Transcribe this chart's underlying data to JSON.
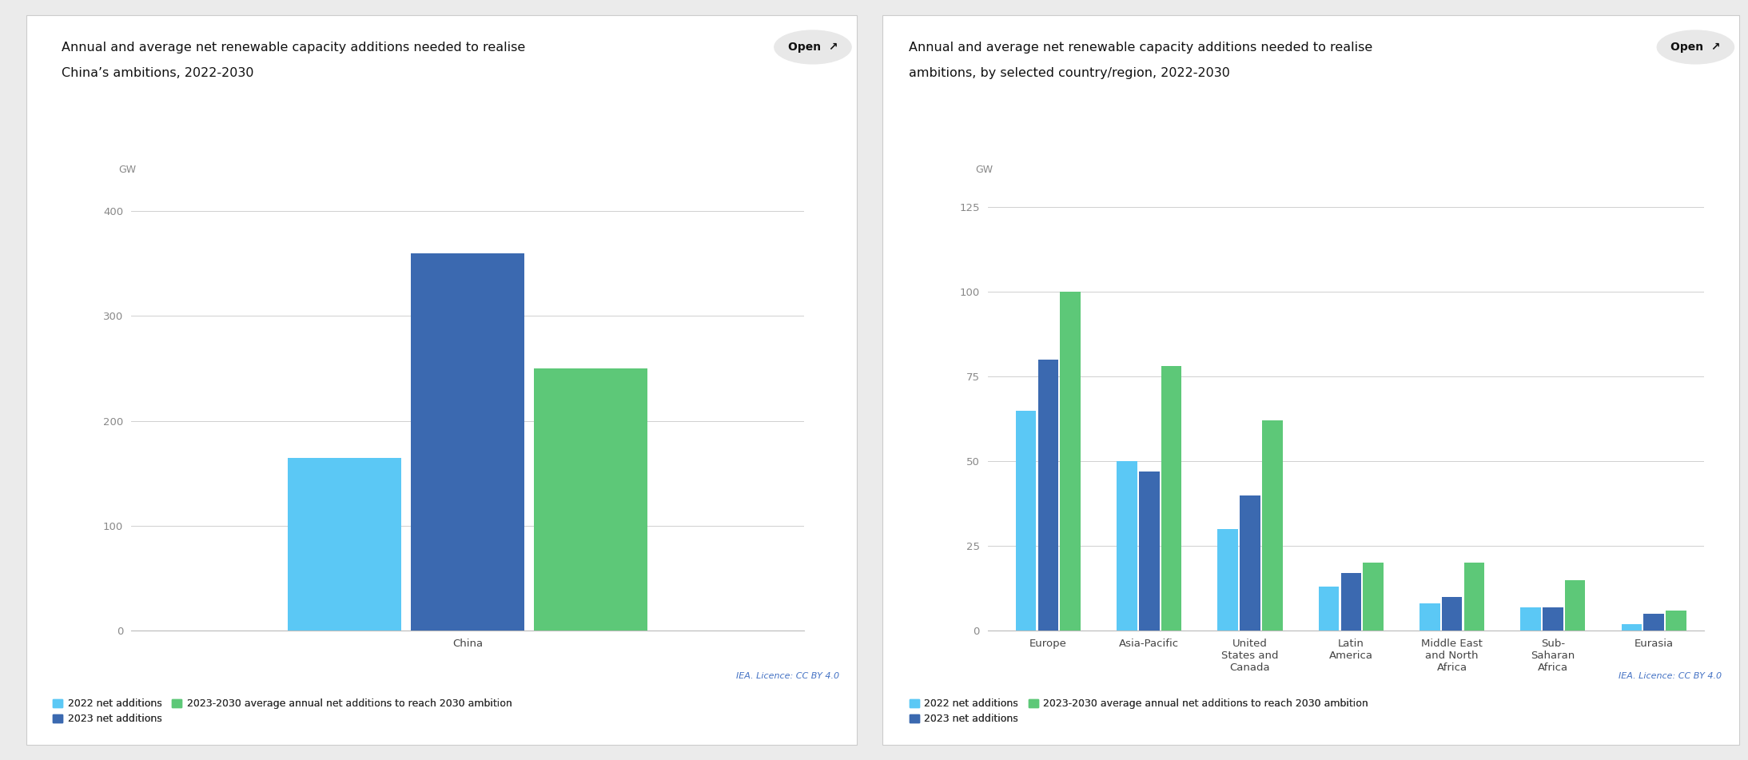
{
  "chart1": {
    "title_line1": "Annual and average net renewable capacity additions needed to realise",
    "title_line2": "China’s ambitions, 2022-2030",
    "ylabel": "GW",
    "ylim": [
      0,
      420
    ],
    "yticks": [
      0,
      100,
      200,
      300,
      400
    ],
    "categories": [
      "China"
    ],
    "bar_groups": {
      "2022 net additions": [
        165
      ],
      "2023 net additions": [
        360
      ],
      "2023-2030 average annual net additions to reach 2030 ambition": [
        250
      ]
    },
    "colors": {
      "2022 net additions": "#5BC8F5",
      "2023 net additions": "#3B69B0",
      "2023-2030 average annual net additions to reach 2030 ambition": "#5DC878"
    }
  },
  "chart2": {
    "title_line1": "Annual and average net renewable capacity additions needed to realise",
    "title_line2": "ambitions, by selected country/region, 2022-2030",
    "ylabel": "GW",
    "ylim": [
      0,
      130
    ],
    "yticks": [
      0,
      25,
      50,
      75,
      100,
      125
    ],
    "categories": [
      "Europe",
      "Asia-Pacific",
      "United\nStates and\nCanada",
      "Latin\nAmerica",
      "Middle East\nand North\nAfrica",
      "Sub-\nSaharan\nAfrica",
      "Eurasia"
    ],
    "bar_groups": {
      "2022 net additions": [
        65,
        50,
        30,
        13,
        8,
        7,
        2
      ],
      "2023 net additions": [
        80,
        47,
        40,
        17,
        10,
        7,
        5
      ],
      "2023-2030 average annual net additions to reach 2030 ambition": [
        100,
        78,
        62,
        20,
        20,
        15,
        6
      ]
    },
    "colors": {
      "2022 net additions": "#5BC8F5",
      "2023 net additions": "#3B69B0",
      "2023-2030 average annual net additions to reach 2030 ambition": "#5DC878"
    }
  },
  "legend_labels": [
    "2022 net additions",
    "2023 net additions",
    "2023-2030 average annual net additions to reach 2030 ambition"
  ],
  "legend_colors": [
    "#5BC8F5",
    "#3B69B0",
    "#5DC878"
  ],
  "background_color": "#ebebeb",
  "panel_color": "#ffffff",
  "licence_text": "IEA. Licence: CC BY 4.0",
  "title_fontsize": 11.5,
  "axis_label_fontsize": 9,
  "tick_fontsize": 9.5,
  "legend_fontsize": 9,
  "bar_width": 0.22,
  "grid_color": "#d0d0d0"
}
